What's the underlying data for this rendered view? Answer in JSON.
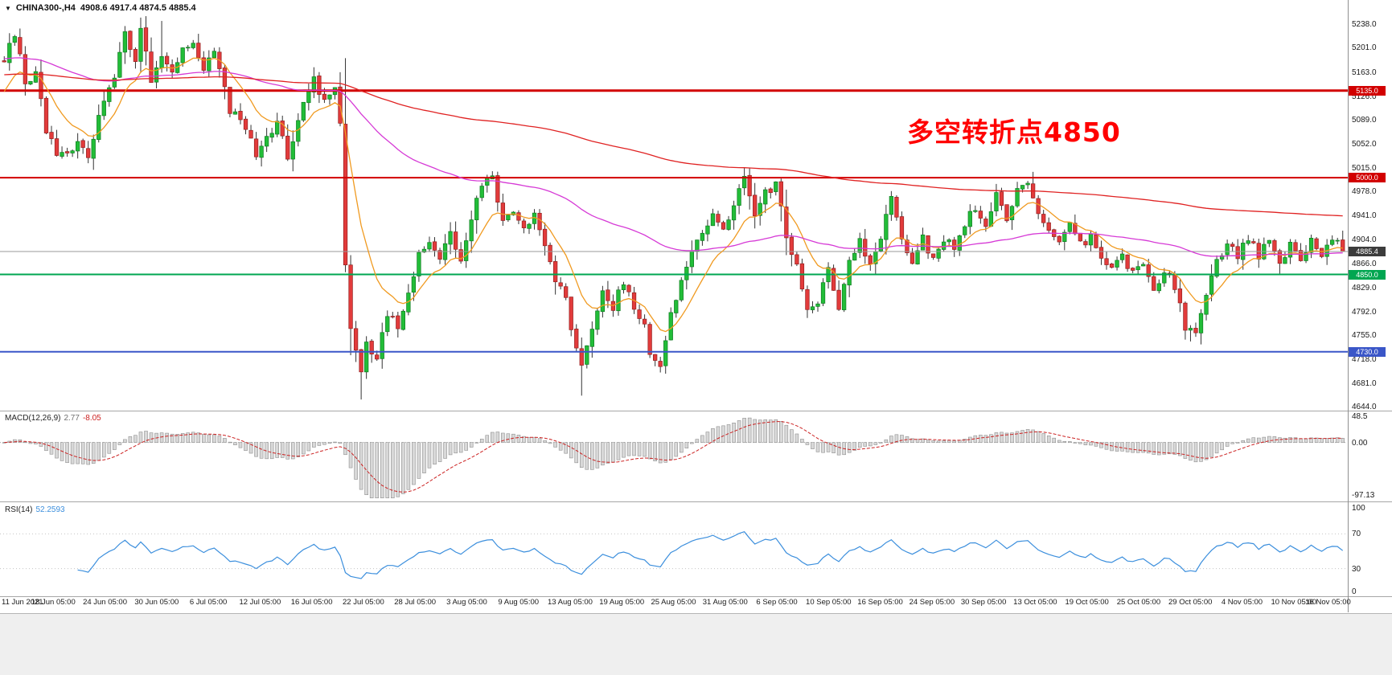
{
  "header": {
    "dropdown_icon": "▼",
    "symbol": "CHINA300-,H4",
    "ohlc": "4908.6 4917.4 4874.5 4885.4"
  },
  "annotation": {
    "text": "多空转折点4850",
    "color": "#ff0000"
  },
  "price_scale": {
    "ticks": [
      "5238.0",
      "5201.0",
      "5163.0",
      "5126.0",
      "5089.0",
      "5052.0",
      "5015.0",
      "4978.0",
      "4941.0",
      "4904.0",
      "4866.0",
      "4829.0",
      "4792.0",
      "4755.0",
      "4718.0",
      "4681.0",
      "4644.0"
    ]
  },
  "levels": [
    {
      "price": 5135.0,
      "label": "5135.0",
      "color": "#d20000",
      "width": 3
    },
    {
      "price": 5000.0,
      "label": "5000.0",
      "color": "#d20000",
      "width": 2
    },
    {
      "price": 4885.4,
      "label": "4885.4",
      "color": "#3c3c3c",
      "line_color": "#9a9a9a",
      "width": 1
    },
    {
      "price": 4850.0,
      "label": "4850.0",
      "color": "#00a651",
      "width": 2
    },
    {
      "price": 4730.0,
      "label": "4730.0",
      "color": "#3a56c8",
      "width": 2
    }
  ],
  "macd_panel": {
    "label": "MACD(12,26,9)",
    "main_value": "2.77",
    "signal_value": "-8.05",
    "main_color": "#6f6f6f",
    "signal_color": "#cc2222",
    "histogram_fill": "#d8d8d8",
    "histogram_stroke": "#8f8f8f",
    "axis": [
      {
        "v": 48.5,
        "label": "48.5"
      },
      {
        "v": 0,
        "label": "0.00"
      },
      {
        "v": -97.13,
        "label": "-97.13"
      }
    ]
  },
  "rsi_panel": {
    "label": "RSI(14)",
    "value": "52.2593",
    "color": "#3c8fdd",
    "axis": [
      {
        "v": 100,
        "label": "100"
      },
      {
        "v": 70,
        "label": "70"
      },
      {
        "v": 30,
        "label": "30"
      },
      {
        "v": 0,
        "label": "0"
      }
    ],
    "guides": [
      70,
      30
    ]
  },
  "time_axis": {
    "labels": [
      "11 Jun 2021",
      "18 Jun 05:00",
      "24 Jun 05:00",
      "30 Jun 05:00",
      "6 Jul 05:00",
      "12 Jul 05:00",
      "16 Jul 05:00",
      "22 Jul 05:00",
      "28 Jul 05:00",
      "3 Aug 05:00",
      "9 Aug 05:00",
      "13 Aug 05:00",
      "19 Aug 05:00",
      "25 Aug 05:00",
      "31 Aug 05:00",
      "6 Sep 05:00",
      "10 Sep 05:00",
      "16 Sep 05:00",
      "24 Sep 05:00",
      "30 Sep 05:00",
      "13 Oct 05:00",
      "19 Oct 05:00",
      "25 Oct 05:00",
      "29 Oct 05:00",
      "4 Nov 05:00",
      "10 Nov 05:00",
      "16 Nov 05:00"
    ]
  },
  "chart_data": {
    "type": "candlestick",
    "title": "CHINA300-,H4",
    "timeframe": "H4",
    "ylim": [
      4644.0,
      5238.0
    ],
    "candle_count": 256,
    "last_close": 4885.4,
    "ohlc_display": {
      "open": 4908.6,
      "high": 4917.4,
      "low": 4874.5,
      "close": 4885.4
    },
    "noise_amplitude": 7,
    "price_path_anchors": [
      [
        0,
        5185
      ],
      [
        2,
        5220
      ],
      [
        4,
        5150
      ],
      [
        6,
        5160
      ],
      [
        8,
        5075
      ],
      [
        10,
        5040
      ],
      [
        12,
        5035
      ],
      [
        14,
        5055
      ],
      [
        16,
        5030
      ],
      [
        18,
        5090
      ],
      [
        19,
        5120
      ],
      [
        21,
        5160
      ],
      [
        23,
        5230
      ],
      [
        25,
        5180
      ],
      [
        26,
        5235
      ],
      [
        28,
        5150
      ],
      [
        30,
        5185
      ],
      [
        32,
        5160
      ],
      [
        34,
        5200
      ],
      [
        36,
        5215
      ],
      [
        38,
        5170
      ],
      [
        40,
        5195
      ],
      [
        43,
        5105
      ],
      [
        46,
        5080
      ],
      [
        48,
        5035
      ],
      [
        50,
        5060
      ],
      [
        52,
        5090
      ],
      [
        54,
        5035
      ],
      [
        57,
        5110
      ],
      [
        59,
        5155
      ],
      [
        61,
        5115
      ],
      [
        63,
        5135
      ],
      [
        64,
        5090
      ],
      [
        65,
        4870
      ],
      [
        66,
        4760
      ],
      [
        68,
        4700
      ],
      [
        69,
        4745
      ],
      [
        71,
        4720
      ],
      [
        73,
        4790
      ],
      [
        75,
        4770
      ],
      [
        77,
        4820
      ],
      [
        79,
        4880
      ],
      [
        81,
        4900
      ],
      [
        83,
        4870
      ],
      [
        85,
        4920
      ],
      [
        87,
        4870
      ],
      [
        89,
        4940
      ],
      [
        91,
        4985
      ],
      [
        93,
        5005
      ],
      [
        95,
        4930
      ],
      [
        97,
        4950
      ],
      [
        99,
        4920
      ],
      [
        101,
        4940
      ],
      [
        103,
        4895
      ],
      [
        105,
        4845
      ],
      [
        107,
        4820
      ],
      [
        108,
        4760
      ],
      [
        110,
        4705
      ],
      [
        112,
        4770
      ],
      [
        114,
        4820
      ],
      [
        116,
        4800
      ],
      [
        118,
        4840
      ],
      [
        120,
        4800
      ],
      [
        122,
        4770
      ],
      [
        123,
        4720
      ],
      [
        125,
        4710
      ],
      [
        127,
        4790
      ],
      [
        129,
        4840
      ],
      [
        131,
        4880
      ],
      [
        133,
        4920
      ],
      [
        135,
        4940
      ],
      [
        137,
        4920
      ],
      [
        139,
        4960
      ],
      [
        141,
        5005
      ],
      [
        143,
        4940
      ],
      [
        145,
        4975
      ],
      [
        147,
        4990
      ],
      [
        149,
        4910
      ],
      [
        151,
        4860
      ],
      [
        153,
        4790
      ],
      [
        155,
        4810
      ],
      [
        157,
        4855
      ],
      [
        159,
        4800
      ],
      [
        161,
        4870
      ],
      [
        163,
        4900
      ],
      [
        165,
        4870
      ],
      [
        167,
        4910
      ],
      [
        169,
        4965
      ],
      [
        171,
        4905
      ],
      [
        173,
        4870
      ],
      [
        175,
        4905
      ],
      [
        177,
        4870
      ],
      [
        179,
        4905
      ],
      [
        181,
        4890
      ],
      [
        183,
        4930
      ],
      [
        185,
        4955
      ],
      [
        187,
        4930
      ],
      [
        189,
        4975
      ],
      [
        191,
        4940
      ],
      [
        193,
        4985
      ],
      [
        195,
        4995
      ],
      [
        197,
        4950
      ],
      [
        199,
        4920
      ],
      [
        201,
        4900
      ],
      [
        203,
        4935
      ],
      [
        205,
        4895
      ],
      [
        207,
        4910
      ],
      [
        209,
        4880
      ],
      [
        211,
        4855
      ],
      [
        213,
        4880
      ],
      [
        215,
        4850
      ],
      [
        217,
        4870
      ],
      [
        219,
        4830
      ],
      [
        221,
        4855
      ],
      [
        223,
        4830
      ],
      [
        225,
        4770
      ],
      [
        227,
        4760
      ],
      [
        229,
        4820
      ],
      [
        231,
        4870
      ],
      [
        233,
        4900
      ],
      [
        235,
        4880
      ],
      [
        237,
        4905
      ],
      [
        239,
        4880
      ],
      [
        241,
        4900
      ],
      [
        243,
        4870
      ],
      [
        245,
        4895
      ],
      [
        247,
        4875
      ],
      [
        249,
        4900
      ],
      [
        251,
        4880
      ],
      [
        253,
        4908
      ],
      [
        255,
        4885.4
      ]
    ],
    "wick_overrides": [
      [
        68,
        "low",
        4656
      ],
      [
        110,
        "low",
        4662
      ],
      [
        226,
        "low",
        4746
      ],
      [
        30,
        "high",
        5243
      ],
      [
        93,
        "high",
        5010
      ],
      [
        141,
        "high",
        5016
      ],
      [
        196,
        "high",
        5009
      ]
    ],
    "overlays": [
      {
        "name": "ma-fast",
        "period": 11,
        "seed_offset": -55,
        "color": "#f09a20"
      },
      {
        "name": "ma-medium",
        "period": 80,
        "seed_offset": 5,
        "color": "#d63ad6"
      },
      {
        "name": "ma-slow",
        "period": 260,
        "seed_offset": -20,
        "color": "#e02222"
      }
    ],
    "candle_colors": {
      "up_fill": "#22bd38",
      "up_stroke": "#0e7d20",
      "down_fill": "#e23b3b",
      "down_stroke": "#941f1f",
      "wick": "#333333"
    },
    "indicators": [
      {
        "name": "MACD",
        "params": [
          12,
          26,
          9
        ],
        "current_main": 2.77,
        "current_signal": -8.05,
        "axis_max": 48.5,
        "axis_min": -97.13
      },
      {
        "name": "RSI",
        "params": [
          14
        ],
        "current": 52.2593,
        "levels": [
          70,
          30
        ]
      }
    ]
  }
}
